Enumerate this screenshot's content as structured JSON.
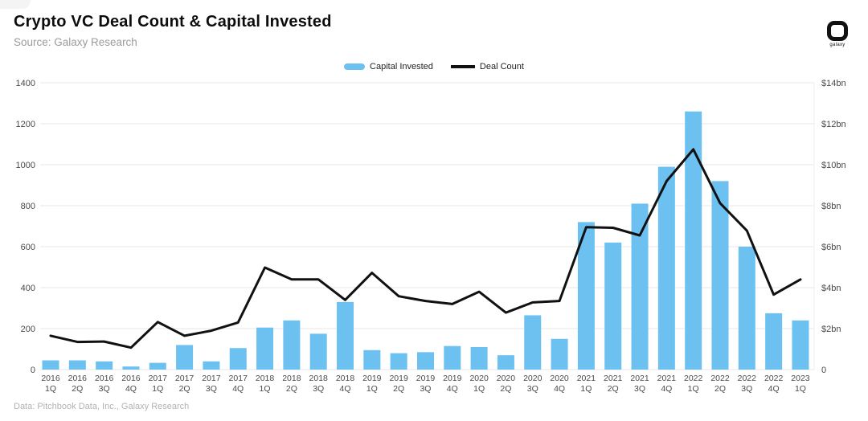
{
  "header": {
    "title": "Crypto VC Deal Count & Capital Invested",
    "subtitle": "Source: Galaxy Research",
    "logo_word": "galaxy"
  },
  "legend": {
    "items": [
      {
        "label": "Capital Invested",
        "swatch": "bar-swatch-icon",
        "color": "#6CC1F1"
      },
      {
        "label": "Deal Count",
        "swatch": "line-swatch-icon",
        "color": "#111111"
      }
    ]
  },
  "footer": {
    "source_note": "Data: Pitchbook Data, Inc., Galaxy Research"
  },
  "colors": {
    "bar": "#6CC1F1",
    "line": "#111111",
    "grid": "#e7e7e7",
    "axis_text": "#4a4a4a",
    "background": "#ffffff"
  },
  "chart_data": {
    "type": "bar+line combo",
    "title": "Crypto VC Deal Count & Capital Invested",
    "grid": "horizontal on",
    "legend_position": "top center",
    "categories": [
      "2016 1Q",
      "2016 2Q",
      "2016 3Q",
      "2016 4Q",
      "2017 1Q",
      "2017 2Q",
      "2017 3Q",
      "2017 4Q",
      "2018 1Q",
      "2018 2Q",
      "2018 3Q",
      "2018 4Q",
      "2019 1Q",
      "2019 2Q",
      "2019 3Q",
      "2019 4Q",
      "2020 1Q",
      "2020 2Q",
      "2020 3Q",
      "2020 4Q",
      "2021 1Q",
      "2021 2Q",
      "2021 3Q",
      "2021 4Q",
      "2022 1Q",
      "2022 2Q",
      "2022 3Q",
      "2022 4Q",
      "2023 1Q"
    ],
    "series": [
      {
        "name": "Capital Invested",
        "type": "bar",
        "axis": "right",
        "unit": "$bn",
        "color": "#6CC1F1",
        "values": [
          0.45,
          0.45,
          0.4,
          0.15,
          0.33,
          1.2,
          0.4,
          1.05,
          2.05,
          2.4,
          1.75,
          3.3,
          0.95,
          0.8,
          0.85,
          1.15,
          1.1,
          0.7,
          2.65,
          1.5,
          7.2,
          6.2,
          8.1,
          9.9,
          12.6,
          9.2,
          6.0,
          2.75,
          2.4
        ]
      },
      {
        "name": "Deal Count",
        "type": "line",
        "axis": "left",
        "unit": "deals",
        "color": "#111111",
        "values": [
          165,
          135,
          137,
          107,
          232,
          165,
          190,
          230,
          498,
          440,
          440,
          340,
          472,
          358,
          335,
          320,
          380,
          278,
          328,
          335,
          695,
          692,
          655,
          920,
          1075,
          812,
          678,
          366,
          440
        ]
      }
    ],
    "left_axis": {
      "range": [
        0,
        1400
      ],
      "tick_step": 200,
      "tick_labels": [
        "0",
        "200",
        "400",
        "600",
        "800",
        "1000",
        "1200",
        "1400"
      ]
    },
    "right_axis": {
      "range_bn": [
        0,
        14
      ],
      "tick_step_bn": 2,
      "tick_labels": [
        "0",
        "$2bn",
        "$4bn",
        "$6bn",
        "$8bn",
        "$10bn",
        "$12bn",
        "$14bn"
      ]
    }
  }
}
